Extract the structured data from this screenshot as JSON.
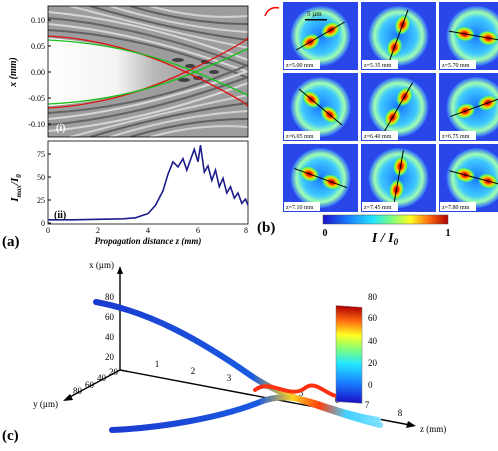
{
  "panel_a": {
    "label": "(a)",
    "top": {
      "sublabel": "(i)",
      "ylabel": "x (mm)",
      "yticks": [
        "0.10",
        "0.05",
        "0.00",
        "-0.05",
        "-0.10"
      ]
    },
    "bottom": {
      "sublabel": "(ii)",
      "ylabel": "I_max/I_0",
      "ylabel_main": "I",
      "ylabel_sub1": "max",
      "ylabel_slash": "/I",
      "ylabel_sub2": "0",
      "yticks": [
        "75",
        "50",
        "25",
        "0"
      ],
      "xticks": [
        "0",
        "2",
        "4",
        "6",
        "8"
      ],
      "xlabel": "Propagation distance z (mm)"
    }
  },
  "chart_data": [
    {
      "type": "line",
      "title": "",
      "xlabel": "Propagation distance z (mm)",
      "ylabel": "I_max/I_0",
      "xlim": [
        0,
        8
      ],
      "ylim": [
        0,
        80
      ],
      "series": [
        {
          "color": "#1c1c8a",
          "x": [
            0,
            1,
            2,
            3,
            3.5,
            4,
            4.3,
            4.6,
            4.8,
            5.0,
            5.2,
            5.4,
            5.55,
            5.7,
            5.85,
            6.0,
            6.1,
            6.25,
            6.4,
            6.55,
            6.7,
            6.85,
            7.0,
            7.15,
            7.3,
            7.45,
            7.6,
            7.75,
            7.9,
            8.0
          ],
          "y": [
            4,
            4,
            4.5,
            5,
            6,
            10,
            18,
            32,
            48,
            60,
            55,
            63,
            52,
            62,
            72,
            60,
            76,
            50,
            56,
            42,
            52,
            36,
            44,
            30,
            36,
            25,
            30,
            20,
            24,
            18
          ]
        }
      ]
    }
  ],
  "panel_b": {
    "label": "(b)",
    "scale_bar": "5 µm",
    "frames": [
      {
        "z": "z=5.00 mm"
      },
      {
        "z": "z=5.35 mm"
      },
      {
        "z": "z=5.70 mm"
      },
      {
        "z": "z=6.05 mm"
      },
      {
        "z": "z=6.40 mm"
      },
      {
        "z": "z=6.75 mm"
      },
      {
        "z": "z=7.10 mm"
      },
      {
        "z": "z=7.45 mm"
      },
      {
        "z": "z=7.80 mm"
      }
    ],
    "colorbar": {
      "min": "0",
      "max": "1",
      "label": "I / I_0",
      "label_main": "I / I",
      "label_sub": "0"
    }
  },
  "panel_c": {
    "label": "(c)",
    "axis_x": "x (µm)",
    "axis_y": "y (µm)",
    "axis_z": "z (mm)",
    "x_ticks": [
      "80",
      "60",
      "40",
      "20"
    ],
    "y_ticks": [
      "80",
      "60",
      "40",
      "20"
    ],
    "z_ticks": [
      "1",
      "2",
      "3",
      "4",
      "5",
      "6",
      "7",
      "8"
    ],
    "colorbar_ticks": [
      "80",
      "60",
      "40",
      "20",
      "0"
    ]
  }
}
